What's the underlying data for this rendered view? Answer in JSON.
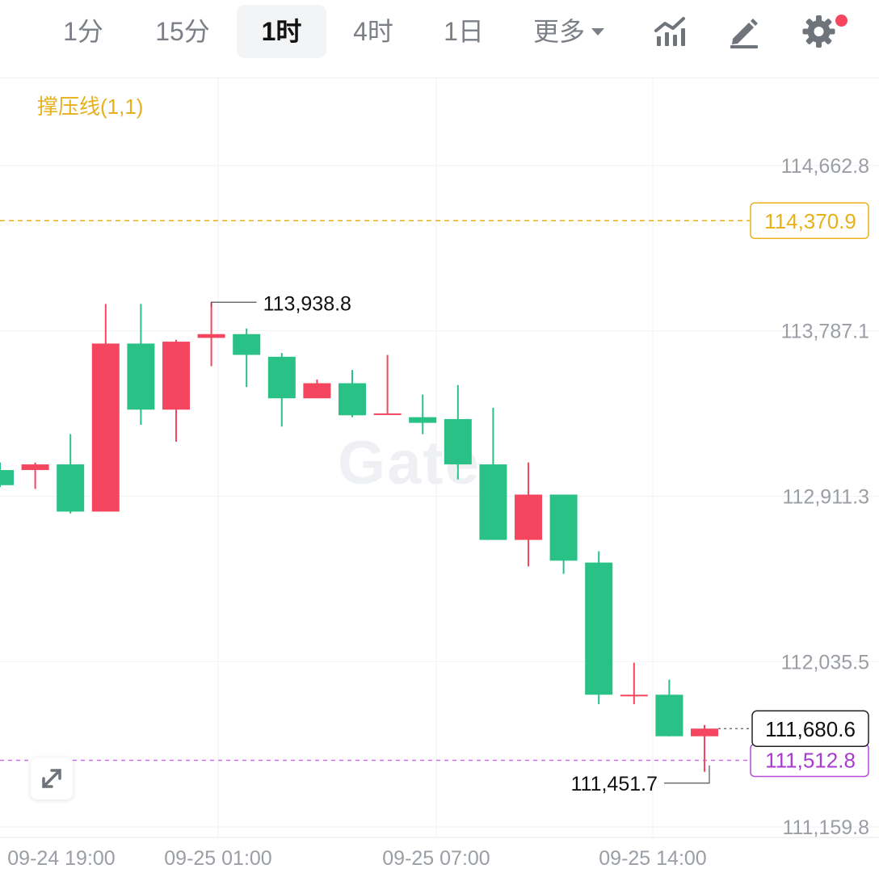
{
  "toolbar": {
    "intervals": [
      "1分",
      "15分",
      "1时",
      "4时",
      "1日"
    ],
    "active_interval": "1时",
    "more_label": "更多",
    "icons": [
      "indicator-icon",
      "drawing-pencil-icon",
      "gear-icon"
    ]
  },
  "indicator": {
    "label": "撑压线(1,1)"
  },
  "watermark": "Gate",
  "colors": {
    "up": "#f4465f",
    "down": "#2ac186",
    "resistance": "#e8b01a",
    "support": "#a93bd1",
    "grid": "#f1f2f4",
    "axis_text": "#9a9ea5"
  },
  "chart_data": {
    "type": "candlestick",
    "y_ticks": [
      114662.8,
      113787.1,
      112911.3,
      112035.5,
      111159.8
    ],
    "y_tick_labels": [
      "114,662.8",
      "113,787.1",
      "112,911.3",
      "112,035.5",
      "111,159.8"
    ],
    "x_tick_labels": [
      "09-24 19:00",
      "09-25 01:00",
      "09-25 07:00",
      "09-25 14:00"
    ],
    "resistance_line": {
      "value": 114370.9,
      "label": "114,370.9"
    },
    "support_line": {
      "value": 111512.8,
      "label": "111,512.8"
    },
    "last_price": {
      "value": 111680.6,
      "label": "111,680.6"
    },
    "high_marker": {
      "value": 113938.8,
      "label": "113,938.8"
    },
    "low_marker": {
      "value": 111451.7,
      "label": "111,451.7"
    },
    "candles": [
      {
        "o": 113050,
        "h": 113090,
        "l": 112960,
        "c": 112970
      },
      {
        "o": 113050,
        "h": 113090,
        "l": 112950,
        "c": 113080
      },
      {
        "o": 113080,
        "h": 113240,
        "l": 112820,
        "c": 112830
      },
      {
        "o": 112830,
        "h": 113930,
        "l": 112830,
        "c": 113720
      },
      {
        "o": 113720,
        "h": 113930,
        "l": 113290,
        "c": 113370
      },
      {
        "o": 113370,
        "h": 113740,
        "l": 113200,
        "c": 113730
      },
      {
        "o": 113750,
        "h": 113938.8,
        "l": 113600,
        "c": 113770
      },
      {
        "o": 113770,
        "h": 113800,
        "l": 113490,
        "c": 113660
      },
      {
        "o": 113650,
        "h": 113670,
        "l": 113280,
        "c": 113430
      },
      {
        "o": 113430,
        "h": 113530,
        "l": 113430,
        "c": 113510
      },
      {
        "o": 113510,
        "h": 113580,
        "l": 113330,
        "c": 113340
      },
      {
        "o": 113350,
        "h": 113660,
        "l": 113350,
        "c": 113350
      },
      {
        "o": 113330,
        "h": 113450,
        "l": 113240,
        "c": 113300
      },
      {
        "o": 113320,
        "h": 113500,
        "l": 113000,
        "c": 113080
      },
      {
        "o": 113080,
        "h": 113380,
        "l": 112690,
        "c": 112680
      },
      {
        "o": 112680,
        "h": 113090,
        "l": 112540,
        "c": 112920
      },
      {
        "o": 112920,
        "h": 112920,
        "l": 112500,
        "c": 112570
      },
      {
        "o": 112560,
        "h": 112620,
        "l": 111810,
        "c": 111860
      },
      {
        "o": 111860,
        "h": 112030,
        "l": 111810,
        "c": 111860
      },
      {
        "o": 111860,
        "h": 111940,
        "l": 111640,
        "c": 111640
      },
      {
        "o": 111640,
        "h": 111700,
        "l": 111451.7,
        "c": 111680.6
      }
    ]
  }
}
